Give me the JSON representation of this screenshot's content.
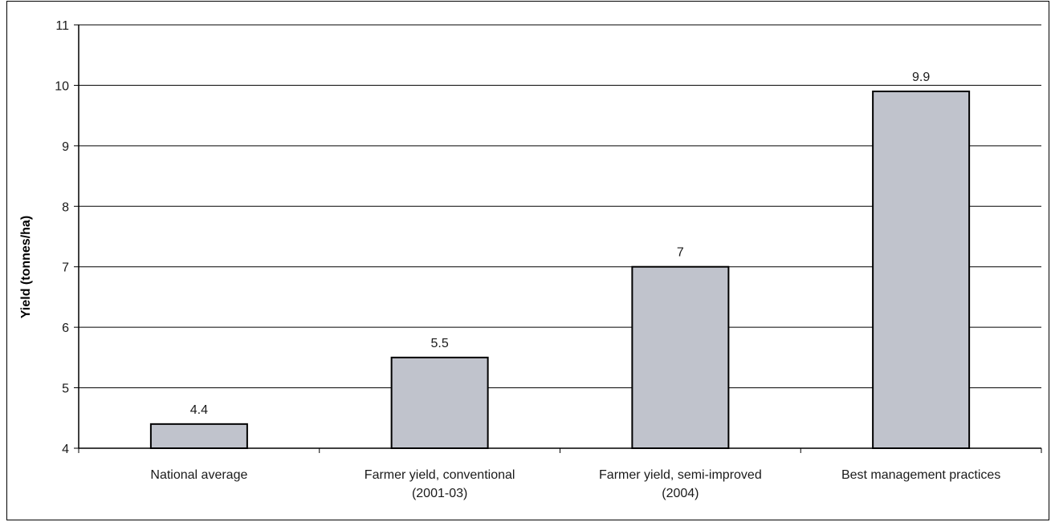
{
  "chart_data": {
    "type": "bar",
    "title": "",
    "xlabel": "",
    "ylabel": "Yield (tonnes/ha)",
    "categories": [
      [
        "National average"
      ],
      [
        "Farmer yield, conventional",
        "(2001-03)"
      ],
      [
        "Farmer yield, semi-improved",
        "(2004)"
      ],
      [
        "Best management practices"
      ]
    ],
    "values": [
      4.4,
      5.5,
      7,
      9.9
    ],
    "value_labels": [
      "4.4",
      "5.5",
      "7",
      "9.9"
    ],
    "ylim": [
      4,
      11
    ],
    "yticks": [
      4,
      5,
      6,
      7,
      8,
      9,
      10,
      11
    ],
    "grid": true,
    "legend": "none",
    "bar_color": "#c0c3cc",
    "bar_edge_color": "#000000"
  }
}
